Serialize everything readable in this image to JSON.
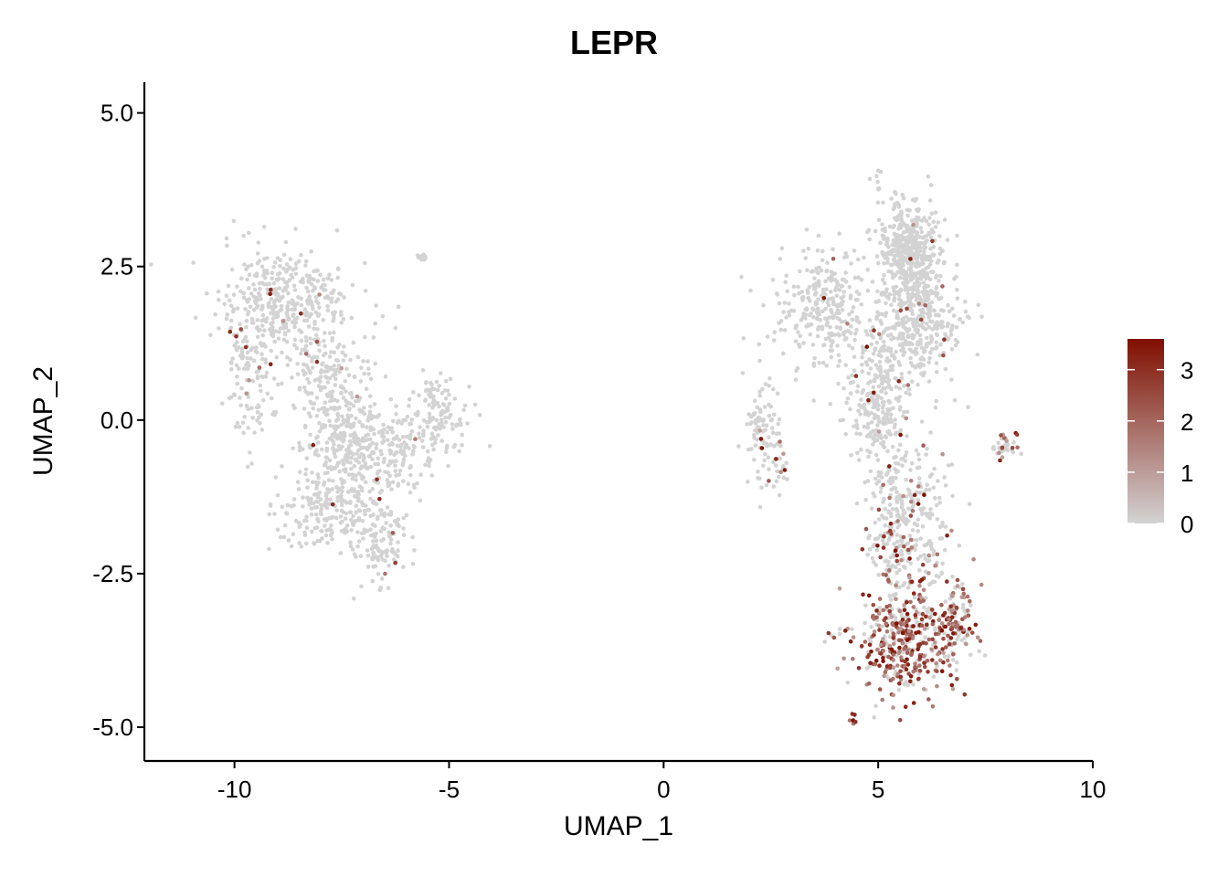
{
  "chart_data": {
    "type": "scatter",
    "title": "LEPR",
    "xlabel": "UMAP_1",
    "ylabel": "UMAP_2",
    "xlim": [
      -12.1,
      10.0
    ],
    "ylim": [
      -5.55,
      5.5
    ],
    "x_ticks": [
      -10,
      -5,
      0,
      5,
      10
    ],
    "x_tick_labels": [
      "-10",
      "-5",
      "0",
      "5",
      "10"
    ],
    "y_ticks": [
      -5.0,
      -2.5,
      0.0,
      2.5,
      5.0
    ],
    "y_tick_labels": [
      "-5.0",
      "-2.5",
      "0.0",
      "2.5",
      "5.0"
    ],
    "grid": false,
    "legend": {
      "type": "colorbar",
      "position": "right",
      "range": [
        0,
        3.6
      ],
      "ticks": [
        0,
        1,
        2,
        3
      ],
      "tick_labels": [
        "0",
        "1",
        "2",
        "3"
      ],
      "low_color": "#d3d3d3",
      "high_color": "#7f0f00"
    },
    "point_color_low": "#d3d3d3",
    "point_color_high": "#7f0f00",
    "clusters": [
      {
        "cx": -8.8,
        "cy": 1.9,
        "sx": 0.75,
        "sy": 0.45,
        "n": 380,
        "expr_rate": 0.03
      },
      {
        "cx": -9.6,
        "cy": 0.8,
        "sx": 0.3,
        "sy": 0.55,
        "n": 110,
        "expr_rate": 0.08
      },
      {
        "cx": -7.8,
        "cy": 0.7,
        "sx": 0.5,
        "sy": 0.5,
        "n": 180,
        "expr_rate": 0.03
      },
      {
        "cx": -7.3,
        "cy": -0.4,
        "sx": 0.5,
        "sy": 0.45,
        "n": 210,
        "expr_rate": 0.02
      },
      {
        "cx": -7.8,
        "cy": -1.4,
        "sx": 0.6,
        "sy": 0.4,
        "n": 220,
        "expr_rate": 0.03
      },
      {
        "cx": -6.6,
        "cy": -2.0,
        "sx": 0.3,
        "sy": 0.35,
        "n": 110,
        "expr_rate": 0.05
      },
      {
        "cx": -6.3,
        "cy": -0.5,
        "sx": 0.6,
        "sy": 0.35,
        "n": 170,
        "expr_rate": 0.01
      },
      {
        "cx": -5.2,
        "cy": 0.1,
        "sx": 0.35,
        "sy": 0.3,
        "n": 110,
        "expr_rate": 0.0
      },
      {
        "cx": -5.6,
        "cy": 2.65,
        "sx": 0.05,
        "sy": 0.03,
        "n": 8,
        "expr_rate": 0.0
      },
      {
        "cx": 5.7,
        "cy": 2.8,
        "sx": 0.35,
        "sy": 0.4,
        "n": 420,
        "expr_rate": 0.01
      },
      {
        "cx": 5.9,
        "cy": 1.6,
        "sx": 0.5,
        "sy": 0.45,
        "n": 380,
        "expr_rate": 0.02
      },
      {
        "cx": 3.7,
        "cy": 1.8,
        "sx": 0.55,
        "sy": 0.5,
        "n": 280,
        "expr_rate": 0.01
      },
      {
        "cx": 2.3,
        "cy": -0.1,
        "sx": 0.2,
        "sy": 0.4,
        "n": 90,
        "expr_rate": 0.04
      },
      {
        "cx": 2.7,
        "cy": -0.9,
        "sx": 0.12,
        "sy": 0.25,
        "n": 20,
        "expr_rate": 0.2
      },
      {
        "cx": 5.0,
        "cy": 0.3,
        "sx": 0.35,
        "sy": 0.6,
        "n": 270,
        "expr_rate": 0.03
      },
      {
        "cx": 5.8,
        "cy": -1.7,
        "sx": 0.45,
        "sy": 0.6,
        "n": 260,
        "expr_rate": 0.12
      },
      {
        "cx": 5.3,
        "cy": -2.1,
        "sx": 0.3,
        "sy": 0.4,
        "n": 80,
        "expr_rate": 0.3
      },
      {
        "cx": 5.6,
        "cy": -3.6,
        "sx": 0.6,
        "sy": 0.4,
        "n": 380,
        "expr_rate": 0.65
      },
      {
        "cx": 6.8,
        "cy": -3.3,
        "sx": 0.25,
        "sy": 0.4,
        "n": 120,
        "expr_rate": 0.6
      },
      {
        "cx": 5.0,
        "cy": 3.9,
        "sx": 0.06,
        "sy": 0.08,
        "n": 8,
        "expr_rate": 0.0
      },
      {
        "cx": 7.9,
        "cy": -0.4,
        "sx": 0.2,
        "sy": 0.1,
        "n": 35,
        "expr_rate": 0.55
      },
      {
        "cx": 4.4,
        "cy": -4.9,
        "sx": 0.05,
        "sy": 0.07,
        "n": 6,
        "expr_rate": 0.6
      }
    ]
  }
}
